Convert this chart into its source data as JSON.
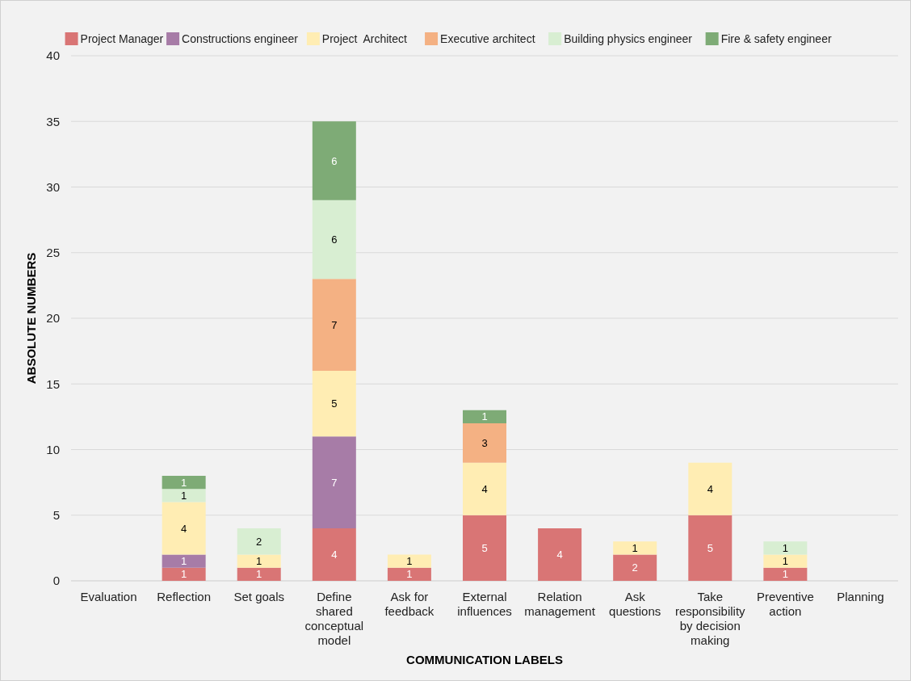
{
  "chart_data": {
    "type": "bar",
    "stacked": true,
    "xlabel": "COMMUNICATION LABELS",
    "ylabel": "ABSOLUTE NUMBERS",
    "categories": [
      "Evaluation",
      "Reflection",
      "Set goals",
      "Define shared conceptual model",
      "Ask for feedback",
      "External influences",
      "Relation management",
      "Ask questions",
      "Take responsibility by decision making",
      "Preventive action",
      "Planning"
    ],
    "series": [
      {
        "name": "Project Manager",
        "color": "#d97575",
        "values": [
          null,
          1,
          1,
          4,
          1,
          5,
          4,
          2,
          5,
          1,
          null
        ]
      },
      {
        "name": "Constructions engineer",
        "color": "#a77ca7",
        "values": [
          null,
          1,
          null,
          7,
          null,
          null,
          null,
          null,
          null,
          null,
          null
        ]
      },
      {
        "name": "Project  Architect",
        "color": "#ffedb3",
        "values": [
          null,
          4,
          1,
          5,
          1,
          4,
          null,
          1,
          4,
          1,
          null
        ]
      },
      {
        "name": "Executive architect",
        "color": "#f4b183",
        "values": [
          null,
          null,
          null,
          7,
          null,
          3,
          null,
          null,
          null,
          null,
          null
        ]
      },
      {
        "name": "Building physics engineer",
        "color": "#d8eed2",
        "values": [
          null,
          1,
          2,
          6,
          null,
          null,
          null,
          null,
          null,
          1,
          null
        ]
      },
      {
        "name": "Fire & safety engineer",
        "color": "#7eab76",
        "values": [
          null,
          1,
          null,
          6,
          null,
          1,
          null,
          null,
          null,
          null,
          null
        ]
      }
    ],
    "ylim": [
      0,
      40
    ],
    "yticks": [
      0,
      5,
      10,
      15,
      20,
      25,
      30,
      35,
      40
    ],
    "grid": "y",
    "legend": "top",
    "data_labels": true
  }
}
